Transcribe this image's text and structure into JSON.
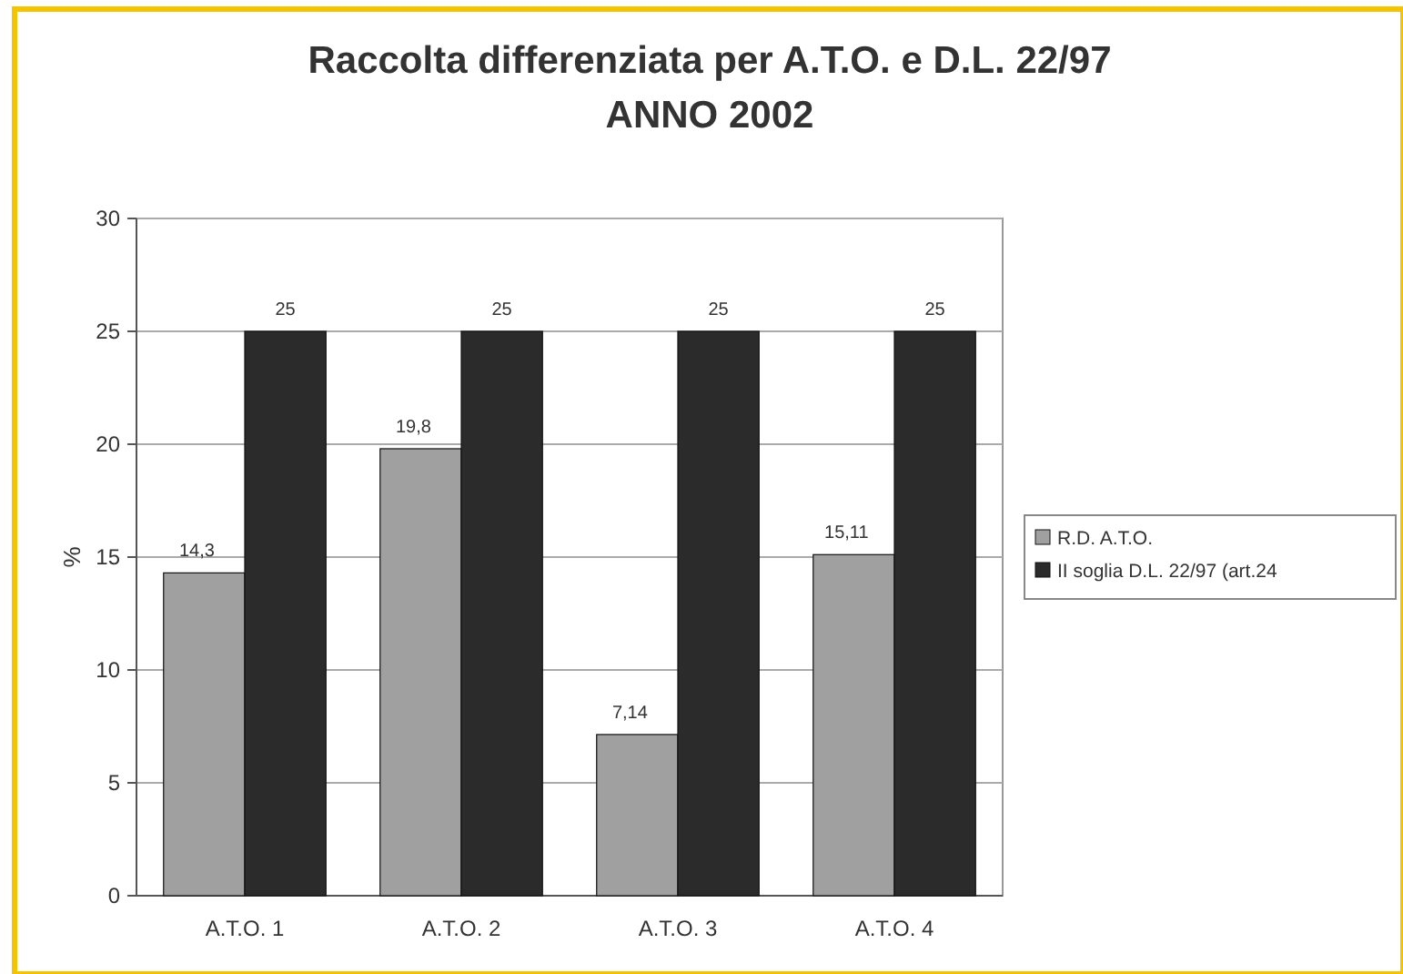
{
  "chart_data": {
    "type": "bar",
    "title": "Raccolta differenziata per A.T.O. e D.L. 22/97",
    "subtitle": "ANNO 2002",
    "ylabel": "%",
    "categories": [
      "A.T.O. 1",
      "A.T.O. 2",
      "A.T.O. 3",
      "A.T.O. 4"
    ],
    "series": [
      {
        "name": "R.D. A.T.O.",
        "color": "#a0a0a0",
        "values": [
          14.3,
          19.8,
          7.14,
          15.11
        ],
        "value_labels": [
          "14,3",
          "19,8",
          "7,14",
          "15,11"
        ]
      },
      {
        "name": "II soglia D.L. 22/97 (art.24",
        "color": "#2b2b2b",
        "values": [
          25,
          25,
          25,
          25
        ],
        "value_labels": [
          "25",
          "25",
          "25",
          "25"
        ]
      }
    ],
    "ylim": [
      0,
      30
    ],
    "yticks": [
      0,
      5,
      10,
      15,
      20,
      25,
      30
    ],
    "grid": "y",
    "legend": "right"
  }
}
